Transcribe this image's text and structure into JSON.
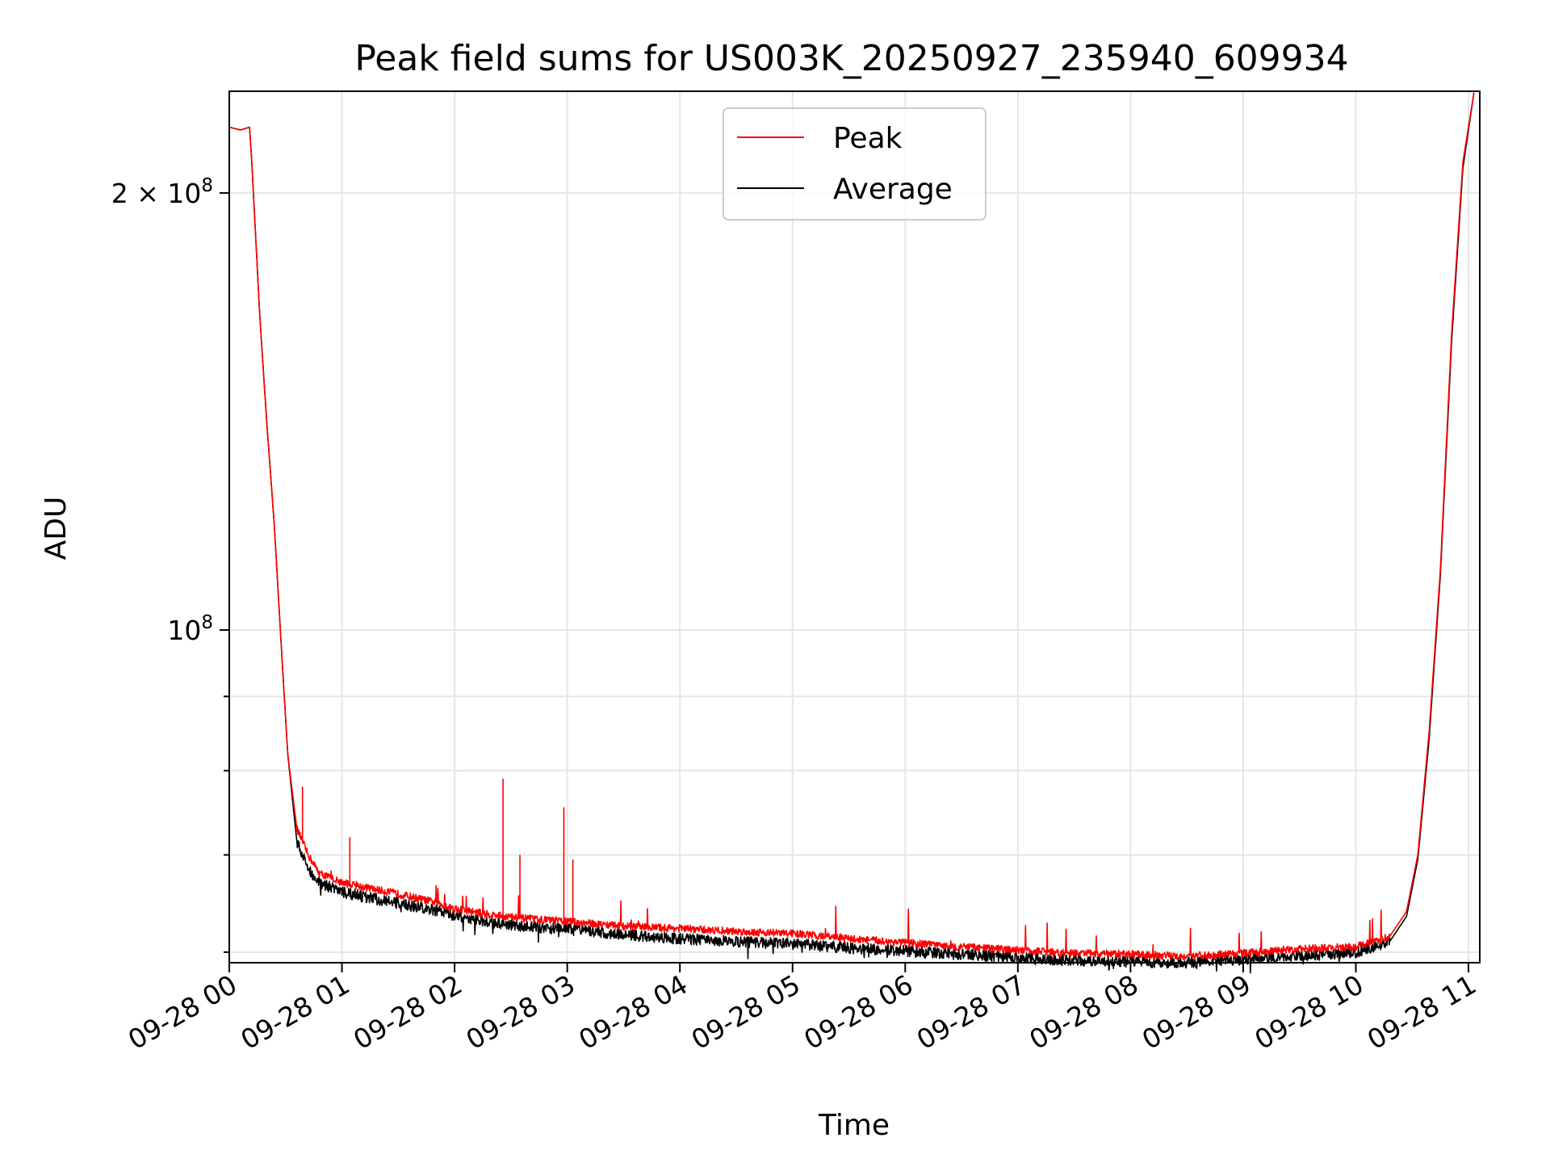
{
  "chart_data": {
    "type": "line",
    "title": "Peak field sums for US003K_20250927_235940_609934",
    "xlabel": "Time",
    "ylabel": "ADU",
    "yscale": "log",
    "grid": true,
    "legend_position": "top-center",
    "xlim_hours": [
      0.0,
      11.1
    ],
    "ylim": [
      59000000,
      235000000
    ],
    "x_ticks": [
      {
        "label": "09-28 00",
        "hour": 0
      },
      {
        "label": "09-28 01",
        "hour": 1
      },
      {
        "label": "09-28 02",
        "hour": 2
      },
      {
        "label": "09-28 03",
        "hour": 3
      },
      {
        "label": "09-28 04",
        "hour": 4
      },
      {
        "label": "09-28 05",
        "hour": 5
      },
      {
        "label": "09-28 06",
        "hour": 6
      },
      {
        "label": "09-28 07",
        "hour": 7
      },
      {
        "label": "09-28 08",
        "hour": 8
      },
      {
        "label": "09-28 09",
        "hour": 9
      },
      {
        "label": "09-28 10",
        "hour": 10
      },
      {
        "label": "09-28 11",
        "hour": 11
      }
    ],
    "y_major_ticks": [
      {
        "label_base": "10",
        "label_exp": "8",
        "label_prefix": "",
        "value": 100000000
      },
      {
        "label_base": "10",
        "label_exp": "8",
        "label_prefix": "2 × ",
        "value": 200000000
      }
    ],
    "y_minor_ticks": [
      60000000,
      70000000,
      80000000,
      90000000
    ],
    "series": [
      {
        "name": "Peak",
        "color": "#ff0000",
        "points": [
          [
            0.0,
            222000000
          ],
          [
            0.1,
            221000000
          ],
          [
            0.18,
            222000000
          ],
          [
            0.2,
            210000000
          ],
          [
            0.27,
            165000000
          ],
          [
            0.33,
            140000000
          ],
          [
            0.4,
            118000000
          ],
          [
            0.47,
            95000000
          ],
          [
            0.52,
            82000000
          ],
          [
            0.6,
            73000000
          ],
          [
            0.7,
            70000000
          ],
          [
            0.8,
            68000000
          ],
          [
            1.0,
            67000000
          ],
          [
            1.2,
            66500000
          ],
          [
            1.5,
            65800000
          ],
          [
            1.8,
            65000000
          ],
          [
            2.0,
            64300000
          ],
          [
            2.3,
            63700000
          ],
          [
            2.6,
            63300000
          ],
          [
            3.0,
            63000000
          ],
          [
            3.5,
            62500000
          ],
          [
            4.0,
            62300000
          ],
          [
            4.5,
            62000000
          ],
          [
            5.0,
            61800000
          ],
          [
            5.5,
            61300000
          ],
          [
            6.0,
            60900000
          ],
          [
            6.5,
            60500000
          ],
          [
            7.0,
            60200000
          ],
          [
            7.5,
            59900000
          ],
          [
            8.0,
            59800000
          ],
          [
            8.5,
            59600000
          ],
          [
            9.0,
            59900000
          ],
          [
            9.5,
            60300000
          ],
          [
            10.0,
            60500000
          ],
          [
            10.3,
            61500000
          ],
          [
            10.45,
            64000000
          ],
          [
            10.55,
            70000000
          ],
          [
            10.65,
            85000000
          ],
          [
            10.75,
            110000000
          ],
          [
            10.85,
            160000000
          ],
          [
            10.95,
            210000000
          ],
          [
            11.05,
            235000000
          ]
        ]
      },
      {
        "name": "Average",
        "color": "#000000",
        "points": [
          [
            0.0,
            222000000
          ],
          [
            0.1,
            221000000
          ],
          [
            0.18,
            222000000
          ],
          [
            0.2,
            210000000
          ],
          [
            0.27,
            165000000
          ],
          [
            0.33,
            140000000
          ],
          [
            0.4,
            118000000
          ],
          [
            0.47,
            95000000
          ],
          [
            0.52,
            82000000
          ],
          [
            0.6,
            71500000
          ],
          [
            0.7,
            68500000
          ],
          [
            0.8,
            67000000
          ],
          [
            1.0,
            66000000
          ],
          [
            1.2,
            65500000
          ],
          [
            1.5,
            64800000
          ],
          [
            1.8,
            64200000
          ],
          [
            2.0,
            63600000
          ],
          [
            2.3,
            63000000
          ],
          [
            2.6,
            62500000
          ],
          [
            3.0,
            62200000
          ],
          [
            3.5,
            61700000
          ],
          [
            4.0,
            61300000
          ],
          [
            4.5,
            61000000
          ],
          [
            5.0,
            60800000
          ],
          [
            5.5,
            60400000
          ],
          [
            6.0,
            60100000
          ],
          [
            6.5,
            59800000
          ],
          [
            7.0,
            59500000
          ],
          [
            7.5,
            59200000
          ],
          [
            8.0,
            59100000
          ],
          [
            8.5,
            59000000
          ],
          [
            9.0,
            59300000
          ],
          [
            9.5,
            59700000
          ],
          [
            10.0,
            60000000
          ],
          [
            10.3,
            61000000
          ],
          [
            10.45,
            63500000
          ],
          [
            10.55,
            69500000
          ],
          [
            10.65,
            84000000
          ],
          [
            10.75,
            109000000
          ],
          [
            10.85,
            158000000
          ],
          [
            10.95,
            208000000
          ],
          [
            11.05,
            235000000
          ]
        ]
      }
    ]
  }
}
